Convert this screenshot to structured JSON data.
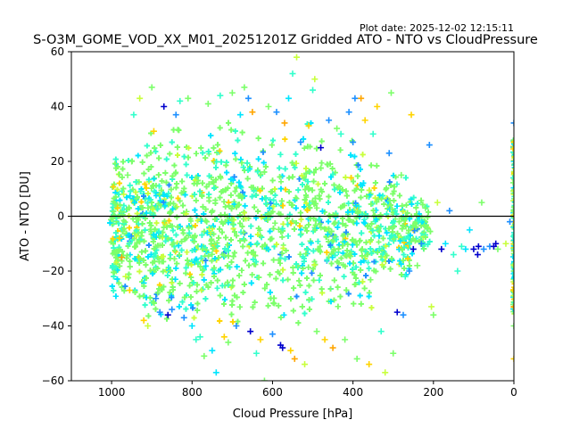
{
  "plot_date": "Plot date: 2025-12-02 12:15:11",
  "chart_data": {
    "type": "scatter",
    "title": "S-O3M_GOME_VOD_XX_M01_20251201Z Gridded ATO - NTO vs CloudPressure",
    "xlabel": "Cloud Pressure [hPa]",
    "ylabel": "ATO - NTO [DU]",
    "xlim": [
      1100,
      0
    ],
    "ylim": [
      -60,
      60
    ],
    "x_ticks": [
      1000,
      800,
      600,
      400,
      200,
      0
    ],
    "y_ticks": [
      -60,
      -40,
      -20,
      0,
      20,
      40,
      60
    ],
    "x_inverted": true,
    "grid": false,
    "reference_line": 0,
    "marker": "+",
    "colors": [
      "#0000cd",
      "#1e90ff",
      "#00e5ff",
      "#33ffcc",
      "#7cff6a",
      "#c8ff3c",
      "#ffd400",
      "#ffa500"
    ],
    "points": [
      [
        985,
        3,
        6
      ],
      [
        980,
        -8,
        6
      ],
      [
        975,
        -15,
        7
      ],
      [
        970,
        8,
        5
      ],
      [
        965,
        -22,
        5
      ],
      [
        960,
        15,
        4
      ],
      [
        955,
        -27,
        6
      ],
      [
        950,
        20,
        4
      ],
      [
        945,
        37,
        3
      ],
      [
        930,
        43,
        5
      ],
      [
        920,
        -38,
        6
      ],
      [
        910,
        -40,
        5
      ],
      [
        900,
        47,
        4
      ],
      [
        895,
        31,
        6
      ],
      [
        890,
        -30,
        1
      ],
      [
        880,
        -35,
        1
      ],
      [
        870,
        40,
        0
      ],
      [
        860,
        -36,
        0
      ],
      [
        850,
        -34,
        1
      ],
      [
        840,
        37,
        1
      ],
      [
        830,
        42,
        3
      ],
      [
        820,
        -37,
        1
      ],
      [
        810,
        43,
        4
      ],
      [
        800,
        -40,
        2
      ],
      [
        790,
        -45,
        3
      ],
      [
        780,
        -44,
        3
      ],
      [
        770,
        -51,
        4
      ],
      [
        760,
        41,
        4
      ],
      [
        750,
        -49,
        2
      ],
      [
        740,
        -57,
        2
      ],
      [
        730,
        44,
        3
      ],
      [
        720,
        -44,
        6
      ],
      [
        710,
        -46,
        4
      ],
      [
        700,
        45,
        4
      ],
      [
        690,
        -40,
        1
      ],
      [
        680,
        37,
        2
      ],
      [
        670,
        47,
        4
      ],
      [
        660,
        43,
        1
      ],
      [
        655,
        -42,
        0
      ],
      [
        650,
        38,
        7
      ],
      [
        640,
        -50,
        3
      ],
      [
        630,
        -45,
        6
      ],
      [
        620,
        -60,
        4
      ],
      [
        610,
        40,
        4
      ],
      [
        600,
        -43,
        1
      ],
      [
        590,
        38,
        1
      ],
      [
        580,
        -47,
        0
      ],
      [
        575,
        -48,
        0
      ],
      [
        570,
        34,
        7
      ],
      [
        560,
        43,
        2
      ],
      [
        555,
        -49,
        6
      ],
      [
        550,
        52,
        3
      ],
      [
        545,
        -52,
        7
      ],
      [
        540,
        58,
        5
      ],
      [
        530,
        27,
        1
      ],
      [
        520,
        -54,
        5
      ],
      [
        510,
        33,
        6
      ],
      [
        500,
        46,
        3
      ],
      [
        495,
        50,
        5
      ],
      [
        490,
        -42,
        4
      ],
      [
        480,
        25,
        0
      ],
      [
        470,
        -45,
        6
      ],
      [
        460,
        35,
        1
      ],
      [
        450,
        -48,
        7
      ],
      [
        440,
        32,
        4
      ],
      [
        430,
        30,
        3
      ],
      [
        420,
        -45,
        4
      ],
      [
        410,
        38,
        1
      ],
      [
        400,
        27,
        1
      ],
      [
        395,
        43,
        1
      ],
      [
        390,
        -52,
        4
      ],
      [
        380,
        43,
        7
      ],
      [
        370,
        35,
        6
      ],
      [
        360,
        -54,
        6
      ],
      [
        350,
        30,
        3
      ],
      [
        340,
        40,
        6
      ],
      [
        330,
        -42,
        3
      ],
      [
        320,
        -57,
        5
      ],
      [
        310,
        23,
        1
      ],
      [
        305,
        45,
        4
      ],
      [
        300,
        -50,
        4
      ],
      [
        290,
        -35,
        0
      ],
      [
        280,
        15,
        4
      ],
      [
        275,
        -36,
        1
      ],
      [
        270,
        -22,
        3
      ],
      [
        260,
        -20,
        1
      ],
      [
        255,
        37,
        6
      ],
      [
        250,
        -12,
        0
      ],
      [
        240,
        -18,
        4
      ],
      [
        230,
        -10,
        1
      ],
      [
        220,
        3,
        4
      ],
      [
        210,
        26,
        1
      ],
      [
        205,
        -33,
        5
      ],
      [
        200,
        -36,
        4
      ],
      [
        190,
        5,
        5
      ],
      [
        180,
        -12,
        0
      ],
      [
        170,
        -10,
        2
      ],
      [
        160,
        2,
        1
      ],
      [
        150,
        -14,
        3
      ],
      [
        140,
        -20,
        3
      ],
      [
        130,
        -11,
        3
      ],
      [
        120,
        -12,
        2
      ],
      [
        110,
        -5,
        2
      ],
      [
        100,
        -12,
        0
      ],
      [
        90,
        -14,
        0
      ],
      [
        88,
        -11,
        0
      ],
      [
        80,
        5,
        4
      ],
      [
        75,
        -12,
        1
      ],
      [
        60,
        -11,
        1
      ],
      [
        50,
        -11,
        0
      ],
      [
        45,
        -10,
        0
      ],
      [
        40,
        -12,
        4
      ],
      [
        20,
        -10,
        5
      ],
      [
        10,
        -2,
        1
      ],
      [
        0,
        34,
        1
      ],
      [
        0,
        27,
        6
      ],
      [
        0,
        20,
        2
      ],
      [
        0,
        14,
        3
      ],
      [
        0,
        8,
        5
      ],
      [
        0,
        2,
        4
      ],
      [
        0,
        -4,
        2
      ],
      [
        0,
        -12,
        3
      ],
      [
        0,
        -20,
        4
      ],
      [
        0,
        -27,
        6
      ],
      [
        0,
        -33,
        7
      ],
      [
        0,
        -40,
        4
      ],
      [
        0,
        -52,
        6
      ]
    ]
  }
}
